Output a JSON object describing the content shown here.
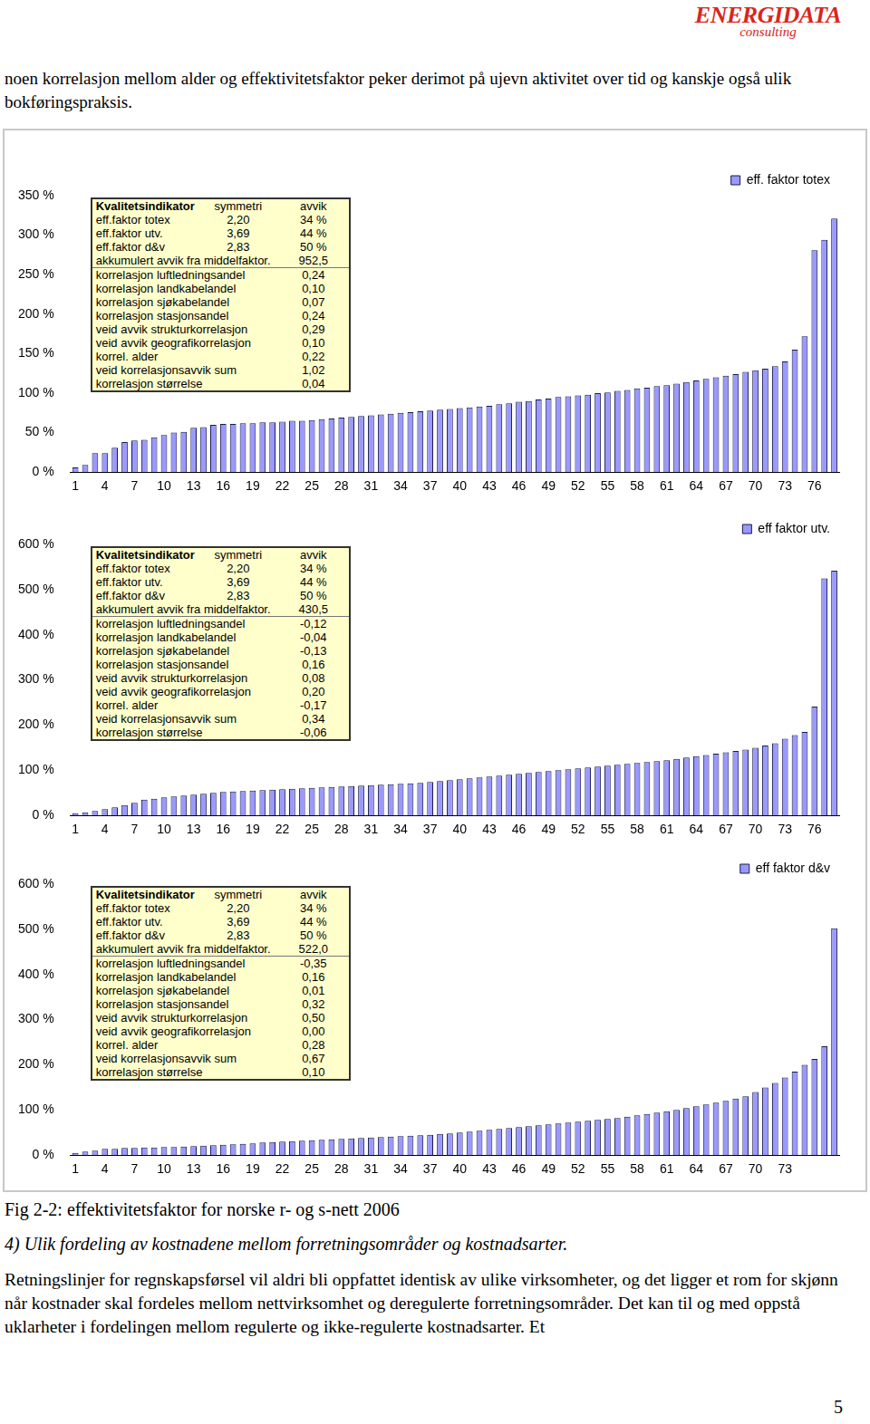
{
  "header": {
    "logo": "ENERGIDATA",
    "logo_sub": "consulting"
  },
  "intro": "noen korrelasjon mellom alder og effektivitetsfaktor peker derimot på ujevn aktivitet over tid og kanskje også ulik bokføringspraksis.",
  "chart_data": [
    {
      "type": "bar",
      "categories": [
        1,
        null,
        null,
        4,
        null,
        null,
        7,
        null,
        null,
        10,
        null,
        null,
        13,
        null,
        null,
        16,
        null,
        null,
        19,
        null,
        null,
        22,
        null,
        null,
        25,
        null,
        null,
        28,
        null,
        null,
        31,
        null,
        null,
        34,
        null,
        null,
        37,
        null,
        null,
        40,
        null,
        null,
        43,
        null,
        null,
        46,
        null,
        null,
        49,
        null,
        null,
        52,
        null,
        null,
        55,
        null,
        null,
        58,
        null,
        null,
        61,
        null,
        null,
        64,
        null,
        null,
        67,
        null,
        null,
        70,
        null,
        null,
        73,
        null,
        null,
        76,
        null,
        null
      ],
      "series": [
        {
          "name": "eff. faktor totex",
          "color": "#9999ff",
          "values": [
            6,
            9,
            24,
            24,
            31,
            38,
            40,
            41,
            44,
            47,
            50,
            51,
            56,
            57,
            60,
            61,
            61,
            62,
            62,
            63,
            63,
            64,
            65,
            65,
            66,
            67,
            68,
            69,
            70,
            71,
            72,
            73,
            74,
            75,
            76,
            77,
            78,
            79,
            80,
            81,
            82,
            83,
            84,
            86,
            87,
            89,
            90,
            92,
            93,
            95,
            96,
            97,
            98,
            100,
            101,
            103,
            104,
            106,
            107,
            109,
            110,
            112,
            114,
            116,
            118,
            120,
            122,
            124,
            127,
            129,
            131,
            134,
            140,
            155,
            172,
            281,
            294,
            321
          ]
        }
      ],
      "ylim": [
        0,
        350
      ],
      "yticks": [
        {
          "value": 0,
          "label": "0 %"
        },
        {
          "value": 50,
          "label": "50 %"
        },
        {
          "value": 100,
          "label": "100 %"
        },
        {
          "value": 150,
          "label": "150 %"
        },
        {
          "value": 200,
          "label": "200 %"
        },
        {
          "value": 250,
          "label": "250 %"
        },
        {
          "value": 300,
          "label": "300 %"
        },
        {
          "value": 350,
          "label": "350 %"
        }
      ],
      "grid": false,
      "legend": "upper right",
      "annotation_table": {
        "header": [
          "Kvalitetsindikator",
          "symmetri",
          "avvik"
        ],
        "rows": [
          [
            "eff.faktor totex",
            "2,20",
            "34 %"
          ],
          [
            "eff.faktor utv.",
            "3,69",
            "44 %"
          ],
          [
            "eff.faktor d&v",
            "2,83",
            "50 %"
          ],
          [
            "akkumulert avvik fra middelfaktor.",
            "952,5"
          ],
          [
            "korrelasjon luftledningsandel",
            "0,24"
          ],
          [
            "korrelasjon landkabelandel",
            "0,10"
          ],
          [
            "korrelasjon sjøkabelandel",
            "0,07"
          ],
          [
            "korrelasjon stasjonsandel",
            "0,24"
          ],
          [
            "veid avvik strukturkorrelasjon",
            "0,29"
          ],
          [
            "veid avvik geografikorrelasjon",
            "0,10"
          ],
          [
            "korrel. alder",
            "0,22"
          ],
          [
            "veid korrelasjonsavvik sum",
            "1,02"
          ],
          [
            "korrelasjon størrelse",
            "0,04"
          ]
        ]
      }
    },
    {
      "type": "bar",
      "categories": [
        1,
        null,
        null,
        4,
        null,
        null,
        7,
        null,
        null,
        10,
        null,
        null,
        13,
        null,
        null,
        16,
        null,
        null,
        19,
        null,
        null,
        22,
        null,
        null,
        25,
        null,
        null,
        28,
        null,
        null,
        31,
        null,
        null,
        34,
        null,
        null,
        37,
        null,
        null,
        40,
        null,
        null,
        43,
        null,
        null,
        46,
        null,
        null,
        49,
        null,
        null,
        52,
        null,
        null,
        55,
        null,
        null,
        58,
        null,
        null,
        61,
        null,
        null,
        64,
        null,
        null,
        67,
        null,
        null,
        70,
        null,
        null,
        73,
        null,
        null,
        76,
        null,
        null
      ],
      "series": [
        {
          "name": "eff faktor utv.",
          "color": "#9999ff",
          "values": [
            5,
            7,
            10,
            14,
            18,
            23,
            28,
            35,
            37,
            40,
            42,
            44,
            46,
            48,
            50,
            52,
            53,
            54,
            55,
            56,
            57,
            58,
            59,
            60,
            61,
            62,
            63,
            64,
            65,
            66,
            67,
            68,
            69,
            70,
            71,
            72,
            74,
            76,
            78,
            80,
            82,
            84,
            86,
            88,
            90,
            92,
            94,
            96,
            98,
            100,
            102,
            104,
            106,
            108,
            110,
            112,
            114,
            116,
            118,
            120,
            122,
            125,
            128,
            131,
            134,
            137,
            140,
            143,
            146,
            150,
            155,
            160,
            170,
            178,
            185,
            241,
            525,
            542
          ]
        }
      ],
      "ylim": [
        0,
        600
      ],
      "yticks": [
        {
          "value": 0,
          "label": "0 %"
        },
        {
          "value": 100,
          "label": "100 %"
        },
        {
          "value": 200,
          "label": "200 %"
        },
        {
          "value": 300,
          "label": "300 %"
        },
        {
          "value": 400,
          "label": "400 %"
        },
        {
          "value": 500,
          "label": "500 %"
        },
        {
          "value": 600,
          "label": "600 %"
        }
      ],
      "grid": false,
      "legend": "upper right",
      "annotation_table": {
        "header": [
          "Kvalitetsindikator",
          "symmetri",
          "avvik"
        ],
        "rows": [
          [
            "eff.faktor totex",
            "2,20",
            "34 %"
          ],
          [
            "eff.faktor utv.",
            "3,69",
            "44 %"
          ],
          [
            "eff.faktor d&v",
            "2,83",
            "50 %"
          ],
          [
            "akkumulert avvik fra middelfaktor.",
            "430,5"
          ],
          [
            "korrelasjon luftledningsandel",
            "-0,12"
          ],
          [
            "korrelasjon landkabelandel",
            "-0,04"
          ],
          [
            "korrelasjon sjøkabelandel",
            "-0,13"
          ],
          [
            "korrelasjon stasjonsandel",
            "0,16"
          ],
          [
            "veid avvik strukturkorrelasjon",
            "0,08"
          ],
          [
            "veid avvik geografikorrelasjon",
            "0,20"
          ],
          [
            "korrel. alder",
            "-0,17"
          ],
          [
            "veid korrelasjonsavvik sum",
            "0,34"
          ],
          [
            "korrelasjon størrelse",
            "-0,06"
          ]
        ]
      }
    },
    {
      "type": "bar",
      "categories": [
        1,
        null,
        null,
        4,
        null,
        null,
        7,
        null,
        null,
        10,
        null,
        null,
        13,
        null,
        null,
        16,
        null,
        null,
        19,
        null,
        null,
        22,
        null,
        null,
        25,
        null,
        null,
        28,
        null,
        null,
        31,
        null,
        null,
        34,
        null,
        null,
        37,
        null,
        null,
        40,
        null,
        null,
        43,
        null,
        null,
        46,
        null,
        null,
        49,
        null,
        null,
        52,
        null,
        null,
        55,
        null,
        null,
        58,
        null,
        null,
        61,
        null,
        null,
        64,
        null,
        null,
        67,
        null,
        null,
        70,
        null,
        null,
        73,
        null,
        null,
        null,
        null,
        null
      ],
      "series": [
        {
          "name": "eff faktor d&v",
          "color": "#9999ff",
          "values": [
            5,
            8,
            10,
            14,
            14,
            16,
            16,
            17,
            17,
            18,
            18,
            19,
            20,
            21,
            22,
            23,
            24,
            25,
            26,
            28,
            29,
            30,
            31,
            32,
            33,
            34,
            35,
            36,
            37,
            38,
            39,
            40,
            41,
            42,
            43,
            44,
            45,
            47,
            48,
            50,
            52,
            54,
            56,
            58,
            60,
            62,
            64,
            66,
            68,
            70,
            72,
            74,
            76,
            78,
            80,
            82,
            85,
            88,
            91,
            94,
            97,
            100,
            104,
            108,
            112,
            116,
            120,
            125,
            130,
            140,
            150,
            160,
            172,
            185,
            200,
            213,
            241,
            502
          ]
        }
      ],
      "ylim": [
        0,
        600
      ],
      "yticks": [
        {
          "value": 0,
          "label": "0 %"
        },
        {
          "value": 100,
          "label": "100 %"
        },
        {
          "value": 200,
          "label": "200 %"
        },
        {
          "value": 300,
          "label": "300 %"
        },
        {
          "value": 400,
          "label": "400 %"
        },
        {
          "value": 500,
          "label": "500 %"
        },
        {
          "value": 600,
          "label": "600 %"
        }
      ],
      "grid": false,
      "legend": "upper right",
      "annotation_table": {
        "header": [
          "Kvalitetsindikator",
          "symmetri",
          "avvik"
        ],
        "rows": [
          [
            "eff.faktor totex",
            "2,20",
            "34 %"
          ],
          [
            "eff.faktor utv.",
            "3,69",
            "44 %"
          ],
          [
            "eff.faktor d&v",
            "2,83",
            "50 %"
          ],
          [
            "akkumulert avvik fra middelfaktor.",
            "522,0"
          ],
          [
            "korrelasjon luftledningsandel",
            "-0,35"
          ],
          [
            "korrelasjon landkabelandel",
            "0,16"
          ],
          [
            "korrelasjon sjøkabelandel",
            "0,01"
          ],
          [
            "korrelasjon stasjonsandel",
            "0,32"
          ],
          [
            "veid avvik strukturkorrelasjon",
            "0,50"
          ],
          [
            "veid avvik geografikorrelasjon",
            "0,00"
          ],
          [
            "korrel. alder",
            "0,28"
          ],
          [
            "veid korrelasjonsavvik sum",
            "0,67"
          ],
          [
            "korrelasjon størrelse",
            "0,10"
          ]
        ]
      }
    }
  ],
  "caption": "Fig 2-2: effektivitetsfaktor for norske r- og s-nett 2006",
  "heading": "4) Ulik fordeling av kostnadene mellom forretningsområder og kostnadsarter.",
  "paragraph": "Retningslinjer for regnskapsførsel vil aldri bli oppfattet identisk av ulike virksomheter, og det ligger et rom for skjønn når kostnader skal fordeles mellom nettvirksomhet og deregulerte forretningsområder. Det kan til og med oppstå uklarheter i fordelingen mellom regulerte og ikke-regulerte kostnadsarter. Et",
  "page_number": "5"
}
